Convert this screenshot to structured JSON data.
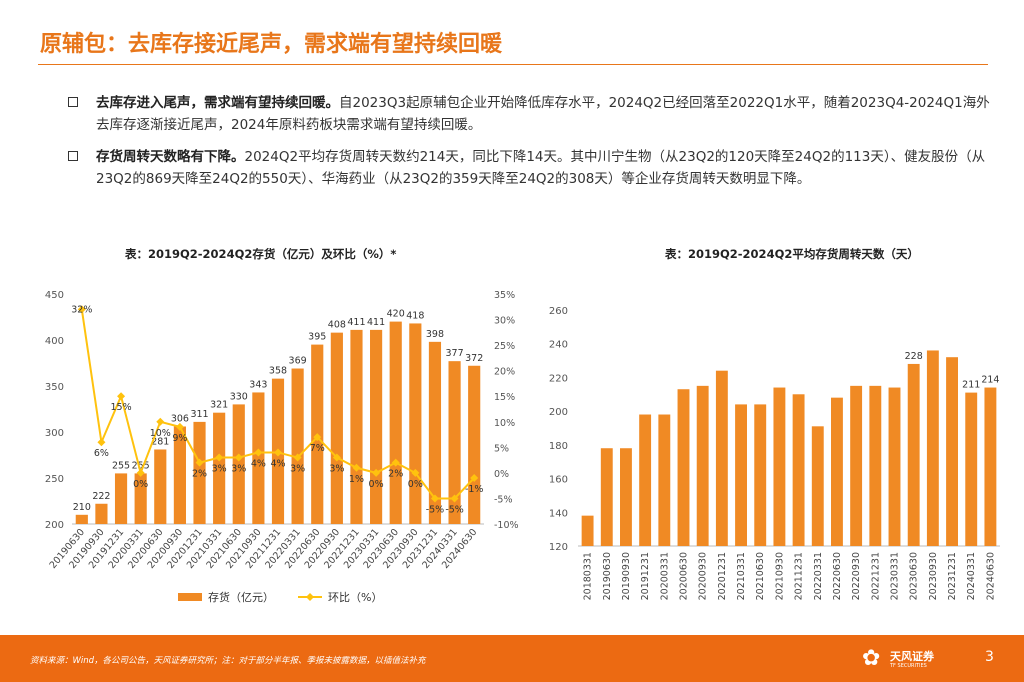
{
  "page": {
    "title": "原辅包：去库存接近尾声，需求端有望持续回暖",
    "bullets": [
      {
        "bold": "去库存进入尾声，需求端有望持续回暖。",
        "text": "自2023Q3起原辅包企业开始降低库存水平，2024Q2已经回落至2022Q1水平，随着2023Q4-2024Q1海外去库存逐渐接近尾声，2024年原料药板块需求端有望持续回暖。"
      },
      {
        "bold": "存货周转天数略有下降。",
        "text": "2024Q2平均存货周转天数约214天，同比下降14天。其中川宁生物（从23Q2的120天降至24Q2的113天）、健友股份（从23Q2的869天降至24Q2的550天）、华海药业（从23Q2的359天降至24Q2的308天）等企业存货周转天数明显下降。"
      }
    ],
    "footer_source": "资料来源：Wind，各公司公告，天风证券研究所；注：对于部分半年报、季报未披露数据，以插值法补充",
    "logo_text": "天风证券",
    "logo_subtext": "TF SECURITIES",
    "page_number": "3",
    "colors": {
      "accent": "#ec6a12",
      "bar": "#f08a24",
      "line": "#ffc20e"
    }
  },
  "chart_data": [
    {
      "type": "bar+line",
      "title": "表：2019Q2-2024Q2存货（亿元）及环比（%）*",
      "categories": [
        "20190630",
        "20190930",
        "20191231",
        "20200331",
        "20200630",
        "20200930",
        "20201231",
        "20210331",
        "20210630",
        "20210930",
        "20211231",
        "20220331",
        "20220630",
        "20220930",
        "20221231",
        "20230331",
        "20230630",
        "20230930",
        "20231231",
        "20240331",
        "20240630"
      ],
      "series": [
        {
          "name": "存货（亿元）",
          "type": "bar",
          "axis": "left",
          "values": [
            210,
            222,
            255,
            255,
            281,
            306,
            311,
            321,
            330,
            343,
            358,
            369,
            395,
            408,
            411,
            411,
            420,
            418,
            398,
            377,
            372
          ],
          "labels": [
            "210",
            "222",
            "255",
            "255",
            "281",
            "306",
            "311",
            "321",
            "330",
            "343",
            "358",
            "369",
            "395",
            "408",
            "411",
            "411",
            "420",
            "418",
            "398",
            "377",
            "372"
          ]
        },
        {
          "name": "环比（%）",
          "type": "line",
          "axis": "right",
          "values": [
            32,
            6,
            15,
            0,
            10,
            9,
            2,
            3,
            3,
            4,
            4,
            3,
            7,
            3,
            1,
            0,
            2,
            0,
            -5,
            -5,
            -1
          ],
          "labels": [
            "32%",
            "6%",
            "15%",
            "0%",
            "10%",
            "9%",
            "2%",
            "3%",
            "3%",
            "4%",
            "4%",
            "3%",
            "7%",
            "3%",
            "1%",
            "0%",
            "2%",
            "0%",
            "-5%",
            "-5%",
            "-1%"
          ]
        }
      ],
      "ylim_left": [
        200,
        450
      ],
      "yticks_left": [
        "200",
        "250",
        "300",
        "350",
        "400",
        "450"
      ],
      "ylim_right": [
        -10,
        35
      ],
      "yticks_right": [
        "-10%",
        "-5%",
        "0%",
        "5%",
        "10%",
        "15%",
        "20%",
        "25%",
        "30%",
        "35%"
      ],
      "legend": [
        "存货（亿元）",
        "环比（%）"
      ],
      "legend_position": "bottom"
    },
    {
      "type": "bar",
      "title": "表：2019Q2-2024Q2平均存货周转天数（天）",
      "categories": [
        "20180331",
        "20190630",
        "20190930",
        "20191231",
        "20200331",
        "20200630",
        "20200930",
        "20201231",
        "20210331",
        "20210630",
        "20210930",
        "20211231",
        "20220331",
        "20220630",
        "20220930",
        "20221231",
        "20230331",
        "20230630",
        "20230930",
        "20231231",
        "20240331",
        "20240630"
      ],
      "values": [
        138,
        178,
        178,
        198,
        198,
        213,
        215,
        224,
        204,
        204,
        214,
        210,
        191,
        208,
        215,
        215,
        214,
        228,
        236,
        232,
        211,
        214
      ],
      "labels": {
        "17": "228",
        "20": "211",
        "21": "214"
      },
      "ylim": [
        120,
        260
      ],
      "yticks": [
        "120",
        "140",
        "160",
        "180",
        "200",
        "220",
        "240",
        "260"
      ]
    }
  ]
}
